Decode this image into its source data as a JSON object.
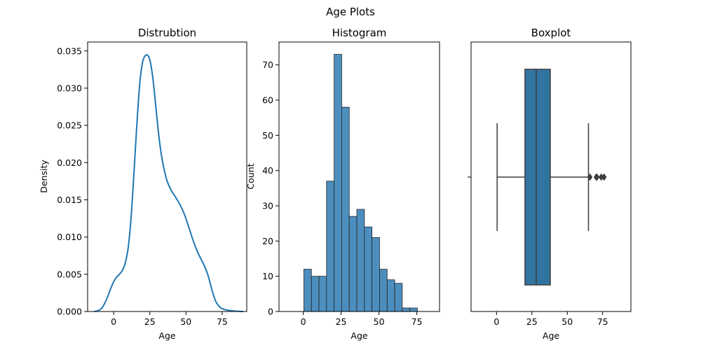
{
  "figure": {
    "title": "Age Plots"
  },
  "chart_data": [
    {
      "type": "line",
      "title": "Distrubtion",
      "xlabel": "Age",
      "ylabel": "Density",
      "xlim": [
        -18,
        92
      ],
      "ylim": [
        0,
        0.0362
      ],
      "xticks": [
        0,
        25,
        50,
        75
      ],
      "yticks": [
        0.0,
        0.005,
        0.01,
        0.015,
        0.02,
        0.025,
        0.03,
        0.035
      ],
      "ytick_labels": [
        "0.000",
        "0.005",
        "0.010",
        "0.015",
        "0.020",
        "0.025",
        "0.030",
        "0.035"
      ],
      "color": "#1f77b4",
      "x": [
        -13.5,
        -11,
        -8,
        -5,
        -2,
        0,
        2,
        4,
        6,
        8,
        10,
        12,
        14,
        16,
        18,
        20,
        22,
        23.5,
        25,
        27,
        29,
        31,
        33,
        35,
        37,
        40,
        43,
        46,
        49,
        52,
        55,
        58,
        61,
        63,
        65,
        67,
        69,
        71,
        74,
        78,
        82,
        86,
        89.5
      ],
      "y": [
        0.0,
        0.0001,
        0.0005,
        0.0016,
        0.0031,
        0.004,
        0.0046,
        0.005,
        0.0055,
        0.0065,
        0.0085,
        0.0125,
        0.0185,
        0.025,
        0.0305,
        0.0335,
        0.0344,
        0.0344,
        0.0338,
        0.0315,
        0.0278,
        0.024,
        0.021,
        0.019,
        0.0175,
        0.0162,
        0.0153,
        0.0143,
        0.013,
        0.0113,
        0.0095,
        0.008,
        0.0068,
        0.006,
        0.005,
        0.0036,
        0.0022,
        0.0012,
        0.0005,
        0.0002,
        0.0001,
        3e-05,
        0.0
      ]
    },
    {
      "type": "bar",
      "title": "Histogram",
      "xlabel": "Age",
      "ylabel": "Count",
      "xlim": [
        -16,
        90
      ],
      "ylim": [
        0,
        76.5
      ],
      "xticks": [
        0,
        25,
        50,
        75
      ],
      "yticks": [
        0,
        10,
        20,
        30,
        40,
        50,
        60,
        70
      ],
      "color": "#4c8fbf",
      "bin_edges": [
        0.42,
        5.4,
        10.4,
        15.4,
        20.4,
        25.4,
        30.4,
        35.4,
        40.4,
        45.4,
        50.4,
        55.4,
        60.4,
        65.4,
        70.4,
        75.4
      ],
      "values": [
        12,
        10,
        10,
        37,
        73,
        58,
        27,
        29,
        24,
        21,
        12,
        9,
        8,
        1,
        1
      ]
    },
    {
      "type": "box",
      "title": "Boxplot",
      "xlabel": "Age",
      "xlim": [
        -18,
        95
      ],
      "xticks": [
        0,
        25,
        50,
        75
      ],
      "color": "#3274a1",
      "whisker_low": 0.42,
      "q1": 20.1,
      "median": 28,
      "q3": 38,
      "whisker_high": 65,
      "outliers": [
        66,
        70.5,
        71,
        74,
        76
      ]
    }
  ]
}
